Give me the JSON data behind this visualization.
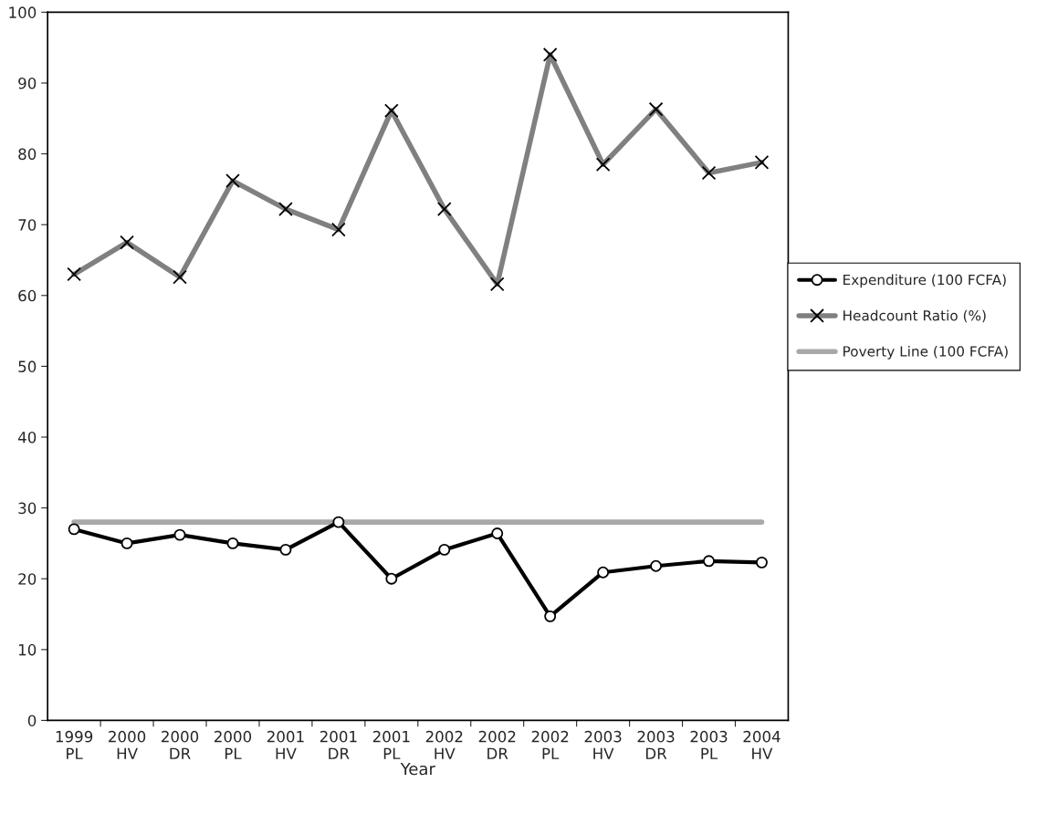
{
  "chart_data": {
    "type": "line",
    "xlabel": "Year",
    "categories": [
      "1999\nPL",
      "2000\nHV",
      "2000\nDR",
      "2000\nPL",
      "2001\nHV",
      "2001\nDR",
      "2001\nPL",
      "2002\nHV",
      "2002\nDR",
      "2002\nPL",
      "2003\nHV",
      "2003\nDR",
      "2003\nPL",
      "2004\nHV"
    ],
    "series": [
      {
        "name": "Expenditure (100 FCFA)",
        "color": "#000000",
        "marker": "circle",
        "values": [
          27.0,
          25.0,
          26.2,
          25.0,
          24.1,
          28.0,
          20.0,
          24.1,
          26.4,
          14.7,
          20.9,
          21.8,
          22.5,
          22.3
        ]
      },
      {
        "name": "Headcount Ratio (%)",
        "color": "#808080",
        "marker": "cross",
        "values": [
          63.0,
          67.5,
          62.6,
          76.2,
          72.2,
          69.3,
          86.1,
          72.2,
          61.6,
          94.0,
          78.5,
          86.3,
          77.3,
          78.8
        ]
      },
      {
        "name": "Poverty Line (100 FCFA)",
        "color": "#a8a8a8",
        "marker": "none",
        "values": [
          28,
          28,
          28,
          28,
          28,
          28,
          28,
          28,
          28,
          28,
          28,
          28,
          28,
          28
        ]
      }
    ],
    "ylim": [
      0,
      100
    ],
    "yticks": [
      0,
      10,
      20,
      30,
      40,
      50,
      60,
      70,
      80,
      90,
      100
    ],
    "grid": false,
    "legend": "right"
  }
}
